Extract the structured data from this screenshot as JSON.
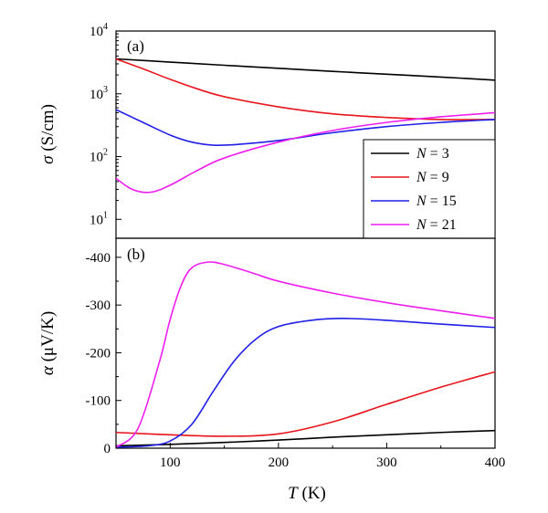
{
  "chart_data": [
    {
      "panel": "(a)",
      "type": "line",
      "ylabel_symbol": "σ",
      "ylabel_unit": "(S/cm)",
      "yscale": "log",
      "ylim": [
        5,
        10000
      ],
      "xlim": [
        50,
        400
      ],
      "yticks": [
        {
          "value": 10,
          "base": "10",
          "exp": "1"
        },
        {
          "value": 100,
          "base": "10",
          "exp": "2"
        },
        {
          "value": 1000,
          "base": "10",
          "exp": "3"
        },
        {
          "value": 10000,
          "base": "10",
          "exp": "4"
        }
      ],
      "legend": {
        "position": "bottom-right",
        "prefix": "N",
        "eq": " = "
      },
      "series": [
        {
          "name": "3",
          "color": "#000000",
          "x": [
            50,
            100,
            150,
            200,
            250,
            300,
            350,
            400
          ],
          "y": [
            3600,
            3200,
            2850,
            2550,
            2280,
            2050,
            1850,
            1650
          ]
        },
        {
          "name": "9",
          "color": "#e8141c",
          "x": [
            50,
            75,
            100,
            125,
            150,
            200,
            250,
            300,
            350,
            400
          ],
          "y": [
            3600,
            2500,
            1700,
            1200,
            900,
            620,
            480,
            420,
            390,
            390
          ]
        },
        {
          "name": "15",
          "color": "#1f1fe6",
          "x": [
            50,
            75,
            100,
            120,
            140,
            160,
            200,
            250,
            300,
            350,
            400
          ],
          "y": [
            560,
            350,
            220,
            170,
            152,
            155,
            180,
            240,
            300,
            350,
            390
          ]
        },
        {
          "name": "21",
          "color": "#ef1ef0",
          "x": [
            50,
            65,
            82,
            100,
            125,
            150,
            200,
            250,
            300,
            350,
            400
          ],
          "y": [
            45,
            30,
            27,
            35,
            60,
            95,
            170,
            260,
            350,
            430,
            500
          ]
        }
      ]
    },
    {
      "panel": "(b)",
      "type": "line",
      "ylabel_symbol": "α",
      "ylabel_unit": "(μV/K)",
      "ylim": [
        0,
        -440
      ],
      "xlim": [
        50,
        400
      ],
      "yticks": [
        {
          "value": 0,
          "label": "0"
        },
        {
          "value": -100,
          "label": "-100"
        },
        {
          "value": -200,
          "label": "-200"
        },
        {
          "value": -300,
          "label": "-300"
        },
        {
          "value": -400,
          "label": "-400"
        }
      ],
      "xticks": [
        {
          "value": 100,
          "label": "100"
        },
        {
          "value": 200,
          "label": "200"
        },
        {
          "value": 300,
          "label": "300"
        },
        {
          "value": 400,
          "label": "400"
        }
      ],
      "xlabel_symbol": "T",
      "xlabel_unit": " (K)",
      "series": [
        {
          "name": "3",
          "color": "#000000",
          "x": [
            50,
            100,
            150,
            200,
            250,
            300,
            350,
            400
          ],
          "y": [
            -5,
            -8,
            -12,
            -17,
            -23,
            -28,
            -33,
            -37
          ]
        },
        {
          "name": "9",
          "color": "#e8141c",
          "x": [
            50,
            100,
            150,
            200,
            250,
            300,
            350,
            400
          ],
          "y": [
            -33,
            -28,
            -25,
            -30,
            -55,
            -92,
            -128,
            -160
          ]
        },
        {
          "name": "15",
          "color": "#1f1fe6",
          "x": [
            50,
            80,
            100,
            120,
            140,
            160,
            180,
            200,
            230,
            260,
            300,
            350,
            400
          ],
          "y": [
            -2,
            -5,
            -15,
            -50,
            -120,
            -185,
            -230,
            -255,
            -268,
            -272,
            -268,
            -260,
            -253
          ]
        },
        {
          "name": "21",
          "color": "#ef1ef0",
          "x": [
            50,
            70,
            90,
            100,
            110,
            120,
            135,
            150,
            175,
            200,
            250,
            300,
            350,
            400
          ],
          "y": [
            -2,
            -40,
            -180,
            -270,
            -340,
            -378,
            -390,
            -385,
            -368,
            -350,
            -325,
            -305,
            -288,
            -272
          ]
        }
      ]
    }
  ]
}
